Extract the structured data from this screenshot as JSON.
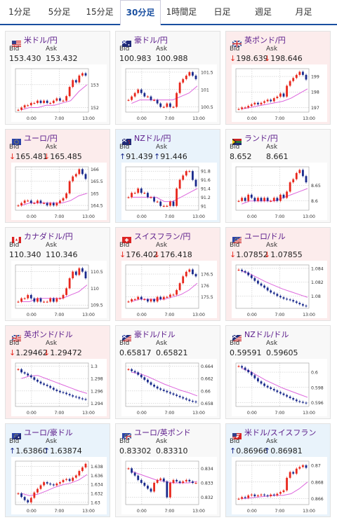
{
  "tabs": [
    {
      "label": "1分足",
      "active": false
    },
    {
      "label": "5分足",
      "active": false
    },
    {
      "label": "15分足",
      "active": false
    },
    {
      "label": "30分足",
      "active": true
    },
    {
      "label": "1時間足",
      "active": false
    },
    {
      "label": "日足",
      "active": false
    },
    {
      "label": "週足",
      "active": false
    },
    {
      "label": "月足",
      "active": false
    }
  ],
  "labels": {
    "bid": "Bid",
    "ask": "Ask"
  },
  "colors": {
    "up": "#e8271c",
    "down": "#1a2a8c",
    "ma": "#dd66dd",
    "down_bg": "#fcecec",
    "up_bg": "#e9f3fb"
  },
  "cards": [
    {
      "name": "米ドル/円",
      "flag": "us",
      "bid": "153.430",
      "ask": "153.432",
      "dir": "none",
      "chart_data": {
        "type": "candlestick",
        "x_ticks": [
          "0:00",
          "7:00",
          "13:00"
        ],
        "y_ticks": [
          "153",
          "152"
        ],
        "ylim": [
          151.8,
          153.7
        ],
        "trend": [
          151.9,
          152.0,
          152.1,
          152.1,
          152.2,
          152.2,
          152.3,
          152.2,
          152.3,
          152.2,
          152.2,
          152.3,
          152.4,
          152.3,
          152.3,
          152.5,
          152.9,
          153.2,
          153.1,
          153.4,
          153.5,
          153.4
        ],
        "ma": [
          151.9,
          152.0,
          152.0,
          152.1,
          152.1,
          152.2,
          152.3,
          152.7,
          153.0
        ]
      }
    },
    {
      "name": "豪ドル/円",
      "flag": "au",
      "bid": "100.983",
      "ask": "100.988",
      "dir": "none",
      "chart_data": {
        "type": "candlestick",
        "x_ticks": [
          "0:00",
          "7:00",
          "13:00"
        ],
        "y_ticks": [
          "101.5",
          "101",
          "100.5"
        ],
        "ylim": [
          100.35,
          101.6
        ],
        "trend": [
          100.7,
          100.8,
          100.9,
          101.0,
          100.9,
          100.8,
          100.8,
          100.7,
          100.7,
          100.6,
          100.5,
          100.5,
          100.6,
          100.5,
          100.5,
          100.9,
          101.2,
          101.3,
          101.4,
          101.5,
          101.4,
          101.3
        ],
        "ma": [
          100.6,
          100.7,
          100.7,
          100.7,
          100.7,
          100.7,
          100.8,
          100.9,
          101.1
        ]
      }
    },
    {
      "name": "英ポンド/円",
      "flag": "gb",
      "bid": "198.639",
      "ask": "198.646",
      "dir": "down",
      "chart_data": {
        "type": "candlestick",
        "x_ticks": [
          "0:00",
          "7:00",
          "13:00"
        ],
        "y_ticks": [
          "199",
          "198",
          "197"
        ],
        "ylim": [
          196.7,
          199.5
        ],
        "trend": [
          196.9,
          197.0,
          197.0,
          197.1,
          197.2,
          197.3,
          197.2,
          197.3,
          197.4,
          197.5,
          197.4,
          197.6,
          197.7,
          197.9,
          197.7,
          198.4,
          198.7,
          198.9,
          199.1,
          199.3,
          199.1,
          198.8
        ],
        "ma": [
          196.9,
          197.0,
          197.1,
          197.2,
          197.3,
          197.4,
          197.6,
          197.9,
          198.2
        ]
      }
    },
    {
      "name": "ユーロ/円",
      "flag": "eu",
      "bid": "165.481",
      "ask": "165.485",
      "dir": "down",
      "chart_data": {
        "type": "candlestick",
        "x_ticks": [
          "0:00",
          "7:00",
          "13:00"
        ],
        "y_ticks": [
          "166",
          "165.5",
          "165",
          "164.5"
        ],
        "ylim": [
          164.3,
          166.1
        ],
        "trend": [
          164.5,
          164.6,
          164.7,
          164.7,
          164.6,
          164.6,
          164.7,
          164.6,
          164.6,
          164.5,
          164.6,
          164.5,
          164.6,
          164.7,
          164.8,
          165.0,
          165.5,
          165.7,
          165.8,
          166.0,
          165.8,
          165.6
        ],
        "ma": [
          164.5,
          164.6,
          164.6,
          164.6,
          164.6,
          164.6,
          164.7,
          164.9,
          165.0
        ]
      }
    },
    {
      "name": "NZドル/円",
      "flag": "nz",
      "bid": "91.439",
      "ask": "91.446",
      "dir": "up",
      "chart_data": {
        "type": "candlestick",
        "x_ticks": [
          "0:00",
          "7:00",
          "13:00"
        ],
        "y_ticks": [
          "91.8",
          "91.6",
          "91.4",
          "91.2",
          "91"
        ],
        "ylim": [
          90.9,
          91.9
        ],
        "trend": [
          91.2,
          91.3,
          91.3,
          91.4,
          91.3,
          91.3,
          91.2,
          91.2,
          91.1,
          91.1,
          91.0,
          91.0,
          91.0,
          91.1,
          91.0,
          91.4,
          91.6,
          91.7,
          91.8,
          91.8,
          91.6,
          91.45
        ],
        "ma": [
          91.2,
          91.2,
          91.2,
          91.2,
          91.1,
          91.1,
          91.2,
          91.3,
          91.4
        ]
      }
    },
    {
      "name": "ランド/円",
      "flag": "za",
      "bid": "8.652",
      "ask": "8.661",
      "dir": "none",
      "chart_data": {
        "type": "candlestick",
        "x_ticks": [
          "0:00",
          "7:00",
          "13:00"
        ],
        "y_ticks": [
          "8.65",
          "8.6"
        ],
        "ylim": [
          8.57,
          8.71
        ],
        "trend": [
          8.6,
          8.61,
          8.6,
          8.62,
          8.61,
          8.6,
          8.61,
          8.6,
          8.61,
          8.6,
          8.6,
          8.61,
          8.6,
          8.62,
          8.61,
          8.63,
          8.66,
          8.67,
          8.69,
          8.7,
          8.68,
          8.66
        ],
        "ma": [
          8.59,
          8.6,
          8.6,
          8.6,
          8.6,
          8.61,
          8.62,
          8.63,
          8.64
        ]
      }
    },
    {
      "name": "カナダドル/円",
      "flag": "ca",
      "bid": "110.340",
      "ask": "110.346",
      "dir": "none",
      "chart_data": {
        "type": "candlestick",
        "x_ticks": [
          "0:00",
          "7:00",
          "13:00"
        ],
        "y_ticks": [
          "110.5",
          "110",
          "109.5"
        ],
        "ylim": [
          109.4,
          110.7
        ],
        "trend": [
          109.6,
          109.7,
          109.7,
          109.8,
          109.7,
          109.6,
          109.7,
          109.6,
          109.6,
          109.6,
          109.7,
          109.6,
          109.7,
          109.7,
          109.8,
          110.0,
          110.3,
          110.5,
          110.4,
          110.6,
          110.5,
          110.3
        ],
        "ma": [
          109.6,
          109.6,
          109.7,
          109.7,
          109.7,
          109.7,
          109.8,
          109.9,
          110.1
        ]
      }
    },
    {
      "name": "スイスフラン/円",
      "flag": "ch",
      "bid": "176.402",
      "ask": "176.418",
      "dir": "down",
      "chart_data": {
        "type": "candlestick",
        "x_ticks": [
          "0:00",
          "7:00",
          "13:00"
        ],
        "y_ticks": [
          "176.5",
          "176",
          "175.5"
        ],
        "ylim": [
          175.0,
          176.9
        ],
        "trend": [
          175.3,
          175.4,
          175.4,
          175.5,
          175.4,
          175.4,
          175.3,
          175.4,
          175.3,
          175.5,
          175.4,
          175.5,
          175.5,
          175.6,
          175.6,
          175.8,
          176.1,
          176.4,
          176.6,
          176.7,
          176.5,
          176.4
        ],
        "ma": [
          175.3,
          175.4,
          175.4,
          175.4,
          175.4,
          175.5,
          175.6,
          175.8,
          176.1
        ]
      }
    },
    {
      "name": "ユーロ/ドル",
      "flag": "eu-us",
      "bid": "1.07852",
      "ask": "1.07855",
      "dir": "down",
      "chart_data": {
        "type": "candlestick",
        "x_ticks": [
          "0:00",
          "7:00",
          "13:00"
        ],
        "y_ticks": [
          "1.084",
          "1.082",
          "1.08"
        ],
        "ylim": [
          1.0782,
          1.0845
        ],
        "trend": [
          1.0838,
          1.0836,
          1.0834,
          1.083,
          1.0826,
          1.0822,
          1.0818,
          1.0815,
          1.0812,
          1.0808,
          1.0805,
          1.0803,
          1.08,
          1.0798,
          1.0796,
          1.0795,
          1.0794,
          1.0792,
          1.079,
          1.0788,
          1.0786,
          1.0785
        ],
        "ma": [
          1.0836,
          1.0832,
          1.0826,
          1.082,
          1.0815,
          1.081,
          1.0806,
          1.0802,
          1.0798
        ]
      }
    },
    {
      "name": "英ポンド/ドル",
      "flag": "gb-us",
      "bid": "1.29462",
      "ask": "1.29472",
      "dir": "down",
      "chart_data": {
        "type": "candlestick",
        "x_ticks": [
          "0:00",
          "7:00",
          "13:00"
        ],
        "y_ticks": [
          "1.3",
          "1.298",
          "1.296",
          "1.294"
        ],
        "ylim": [
          1.2935,
          1.3005
        ],
        "trend": [
          1.2995,
          1.299,
          1.2988,
          1.2985,
          1.2982,
          1.2978,
          1.2975,
          1.2972,
          1.297,
          1.2968,
          1.2965,
          1.2962,
          1.296,
          1.2958,
          1.2957,
          1.2955,
          1.2953,
          1.2951,
          1.295,
          1.2948,
          1.2947,
          1.2946
        ],
        "ma": [
          1.298,
          1.2984,
          1.2985,
          1.298,
          1.2975,
          1.297,
          1.2965,
          1.296,
          1.2956
        ]
      }
    },
    {
      "name": "豪ドル/ドル",
      "flag": "au-us",
      "bid": "0.65817",
      "ask": "0.65821",
      "dir": "none",
      "chart_data": {
        "type": "candlestick",
        "x_ticks": [
          "0:00",
          "7:00",
          "13:00"
        ],
        "y_ticks": [
          "0.664",
          "0.662",
          "0.66",
          "0.658"
        ],
        "ylim": [
          0.6575,
          0.6645
        ],
        "trend": [
          0.6635,
          0.6632,
          0.663,
          0.6626,
          0.6622,
          0.6618,
          0.6614,
          0.661,
          0.6607,
          0.6604,
          0.6602,
          0.66,
          0.6598,
          0.6596,
          0.6594,
          0.6592,
          0.659,
          0.6588,
          0.6586,
          0.6584,
          0.6583,
          0.6582
        ],
        "ma": [
          0.663,
          0.6628,
          0.6623,
          0.6617,
          0.6611,
          0.6606,
          0.6601,
          0.6597,
          0.6592
        ]
      }
    },
    {
      "name": "NZドル/ドル",
      "flag": "nz-us",
      "bid": "0.59591",
      "ask": "0.59605",
      "dir": "none",
      "chart_data": {
        "type": "candlestick",
        "x_ticks": [
          "0:00",
          "7:00",
          "13:00"
        ],
        "y_ticks": [
          "0.6",
          "0.598",
          "0.596"
        ],
        "ylim": [
          0.5955,
          0.6012
        ],
        "trend": [
          0.6008,
          0.6006,
          0.6003,
          0.6,
          0.5996,
          0.5992,
          0.5988,
          0.5985,
          0.5982,
          0.598,
          0.5978,
          0.5976,
          0.5974,
          0.5972,
          0.597,
          0.5968,
          0.5966,
          0.5964,
          0.5962,
          0.5961,
          0.596,
          0.5959
        ],
        "ma": [
          0.6005,
          0.6001,
          0.5995,
          0.5989,
          0.5984,
          0.5979,
          0.5975,
          0.5971,
          0.5967
        ]
      }
    },
    {
      "name": "ユーロ/豪ドル",
      "flag": "eu-au",
      "bid": "1.63860",
      "ask": "1.63874",
      "dir": "up",
      "chart_data": {
        "type": "candlestick",
        "x_ticks": [
          "0:00",
          "7:00",
          "13:00"
        ],
        "y_ticks": [
          "1.638",
          "1.636",
          "1.634",
          "1.632",
          "1.63"
        ],
        "ylim": [
          1.6295,
          1.6392
        ],
        "trend": [
          1.632,
          1.6312,
          1.6305,
          1.63,
          1.631,
          1.6322,
          1.633,
          1.6338,
          1.6345,
          1.6342,
          1.634,
          1.6338,
          1.6342,
          1.6345,
          1.635,
          1.6352,
          1.6348,
          1.6355,
          1.636,
          1.637,
          1.6378,
          1.6386
        ],
        "ma": [
          1.632,
          1.6315,
          1.6318,
          1.6325,
          1.6333,
          1.6339,
          1.6343,
          1.635,
          1.6362
        ]
      }
    },
    {
      "name": "ユーロ/英ポンド",
      "flag": "eu-gb",
      "bid": "0.83302",
      "ask": "0.83310",
      "dir": "none",
      "chart_data": {
        "type": "candlestick",
        "x_ticks": [
          "0:00",
          "7:00",
          "13:00"
        ],
        "y_ticks": [
          "0.834",
          "0.833",
          "0.832"
        ],
        "ylim": [
          0.8315,
          0.8345
        ],
        "trend": [
          0.834,
          0.8337,
          0.8335,
          0.8332,
          0.833,
          0.8328,
          0.8326,
          0.8324,
          0.833,
          0.8332,
          0.8333,
          0.8331,
          0.832,
          0.833,
          0.8332,
          0.8331,
          0.833,
          0.8331,
          0.8332,
          0.8331,
          0.833,
          0.833
        ],
        "ma": [
          0.8338,
          0.8336,
          0.8334,
          0.8332,
          0.8331,
          0.833,
          0.833,
          0.833,
          0.8331
        ]
      }
    },
    {
      "name": "米ドル/スイスフラン",
      "flag": "us-ch",
      "bid": "0.86966",
      "ask": "0.86981",
      "dir": "up",
      "chart_data": {
        "type": "candlestick",
        "x_ticks": [
          "0:00",
          "7:00",
          "13:00"
        ],
        "y_ticks": [
          "0.87",
          "0.868",
          "0.866"
        ],
        "ylim": [
          0.8653,
          0.8705
        ],
        "trend": [
          0.866,
          0.8662,
          0.8661,
          0.8664,
          0.8665,
          0.8663,
          0.8664,
          0.8665,
          0.8664,
          0.8663,
          0.8665,
          0.8664,
          0.8666,
          0.8668,
          0.867,
          0.8685,
          0.8692,
          0.869,
          0.8696,
          0.8698,
          0.87,
          0.8697
        ],
        "ma": [
          0.866,
          0.8661,
          0.8662,
          0.8663,
          0.8664,
          0.8664,
          0.8666,
          0.8672,
          0.868
        ]
      }
    }
  ]
}
